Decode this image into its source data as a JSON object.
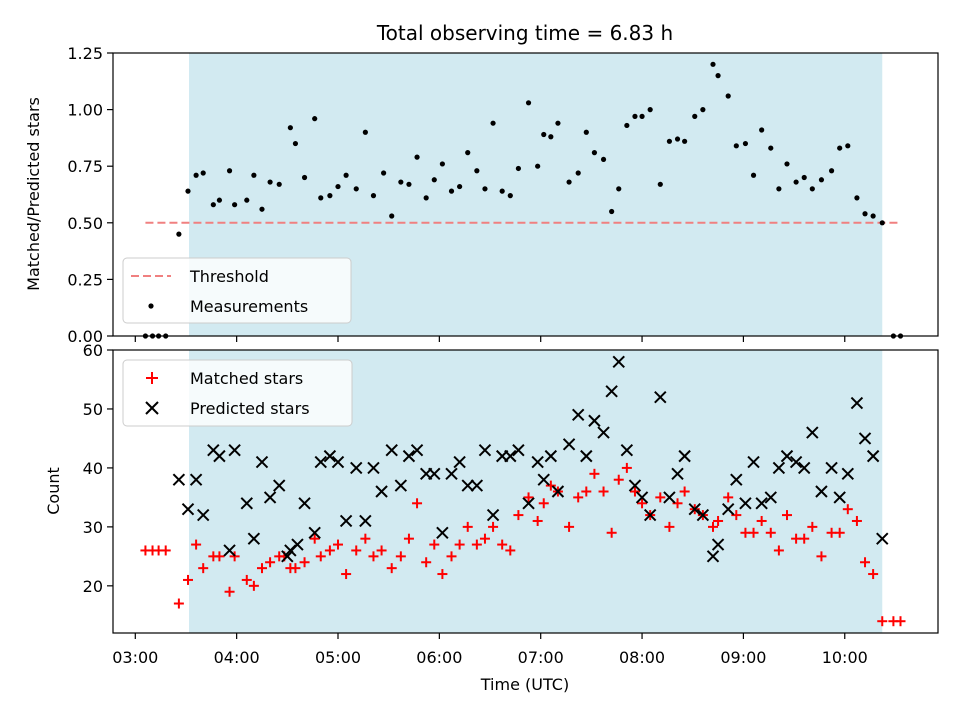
{
  "chart_data": [
    {
      "type": "scatter",
      "title": "Total observing time = 6.83 h",
      "xlabel": "",
      "ylabel": "Matched/Predicted stars",
      "ylim": [
        0,
        1.25
      ],
      "yticks": [
        "0.00",
        "0.25",
        "0.50",
        "0.75",
        "1.00",
        "1.25"
      ],
      "threshold": 0.5,
      "threshold_color": "#f08080",
      "shade_color": "#add8e6",
      "shade_start_hours": 3.53,
      "shade_end_hours": 10.37,
      "legend": {
        "placement": "lower-left",
        "entries": [
          "Threshold",
          "Measurements"
        ]
      },
      "series": [
        {
          "name": "Measurements",
          "color": "#000000",
          "x_hours": [
            3.1,
            3.17,
            3.23,
            3.3,
            3.43,
            3.52,
            3.6,
            3.67,
            3.77,
            3.83,
            3.93,
            3.98,
            4.1,
            4.17,
            4.25,
            4.33,
            4.42,
            4.53,
            4.58,
            4.67,
            4.77,
            4.83,
            4.92,
            5.0,
            5.08,
            5.18,
            5.27,
            5.35,
            5.45,
            5.53,
            5.62,
            5.7,
            5.78,
            5.87,
            5.95,
            6.03,
            6.12,
            6.2,
            6.28,
            6.37,
            6.45,
            6.53,
            6.62,
            6.7,
            6.78,
            6.88,
            6.97,
            7.03,
            7.1,
            7.17,
            7.28,
            7.37,
            7.45,
            7.53,
            7.62,
            7.7,
            7.77,
            7.85,
            7.93,
            8.0,
            8.08,
            8.18,
            8.27,
            8.35,
            8.42,
            8.52,
            8.6,
            8.7,
            8.75,
            8.85,
            8.93,
            9.02,
            9.1,
            9.18,
            9.27,
            9.35,
            9.43,
            9.52,
            9.6,
            9.68,
            9.77,
            9.87,
            9.95,
            10.03,
            10.12,
            10.2,
            10.28,
            10.37,
            10.48,
            10.55
          ],
          "y": [
            0.0,
            0.0,
            0.0,
            0.0,
            0.45,
            0.64,
            0.71,
            0.72,
            0.58,
            0.6,
            0.73,
            0.58,
            0.6,
            0.71,
            0.56,
            0.68,
            0.67,
            0.92,
            0.85,
            0.7,
            0.96,
            0.61,
            0.62,
            0.66,
            0.71,
            0.65,
            0.9,
            0.62,
            0.72,
            0.53,
            0.68,
            0.67,
            0.79,
            0.61,
            0.69,
            0.76,
            0.64,
            0.66,
            0.81,
            0.73,
            0.65,
            0.94,
            0.64,
            0.62,
            0.74,
            1.03,
            0.75,
            0.89,
            0.88,
            0.94,
            0.68,
            0.72,
            0.9,
            0.81,
            0.78,
            0.55,
            0.65,
            0.93,
            0.97,
            0.97,
            1.0,
            0.67,
            0.86,
            0.87,
            0.86,
            0.97,
            1.0,
            1.2,
            1.15,
            1.06,
            0.84,
            0.85,
            0.71,
            0.91,
            0.83,
            0.65,
            0.76,
            0.68,
            0.7,
            0.65,
            0.69,
            0.73,
            0.83,
            0.84,
            0.61,
            0.54,
            0.53,
            0.5,
            0.0,
            0.0
          ]
        }
      ]
    },
    {
      "type": "scatter",
      "title": "",
      "xlabel": "Time (UTC)",
      "ylabel": "Count",
      "ylim": [
        12,
        60
      ],
      "yticks": [
        "20",
        "30",
        "40",
        "50",
        "60"
      ],
      "xlim_hours": [
        2.78,
        10.92
      ],
      "xticks": [
        "03:00",
        "04:00",
        "05:00",
        "06:00",
        "07:00",
        "08:00",
        "09:00",
        "10:00"
      ],
      "xtick_hours": [
        3,
        4,
        5,
        6,
        7,
        8,
        9,
        10
      ],
      "shade_color": "#add8e6",
      "shade_start_hours": 3.53,
      "shade_end_hours": 10.37,
      "legend": {
        "placement": "upper-left",
        "entries": [
          "Matched stars",
          "Predicted stars"
        ]
      },
      "series": [
        {
          "name": "Matched stars",
          "color": "#ff0000",
          "x_hours": [
            3.1,
            3.17,
            3.23,
            3.3,
            3.43,
            3.52,
            3.6,
            3.67,
            3.77,
            3.83,
            3.93,
            3.98,
            4.1,
            4.17,
            4.25,
            4.33,
            4.42,
            4.47,
            4.53,
            4.58,
            4.67,
            4.77,
            4.83,
            4.92,
            5.0,
            5.08,
            5.18,
            5.27,
            5.35,
            5.43,
            5.53,
            5.62,
            5.7,
            5.78,
            5.87,
            5.95,
            6.03,
            6.12,
            6.2,
            6.28,
            6.37,
            6.45,
            6.53,
            6.62,
            6.7,
            6.78,
            6.88,
            6.97,
            7.03,
            7.1,
            7.17,
            7.28,
            7.37,
            7.45,
            7.53,
            7.62,
            7.7,
            7.77,
            7.85,
            7.93,
            8.0,
            8.08,
            8.18,
            8.27,
            8.35,
            8.42,
            8.52,
            8.6,
            8.7,
            8.75,
            8.85,
            8.93,
            9.02,
            9.1,
            9.18,
            9.27,
            9.35,
            9.43,
            9.52,
            9.6,
            9.68,
            9.77,
            9.87,
            9.95,
            10.03,
            10.12,
            10.2,
            10.28,
            10.37,
            10.48,
            10.55
          ],
          "y": [
            26,
            26,
            26,
            26,
            17,
            21,
            27,
            23,
            25,
            25,
            19,
            25,
            21,
            20,
            23,
            24,
            25,
            25,
            23,
            23,
            24,
            28,
            25,
            26,
            27,
            22,
            26,
            28,
            25,
            26,
            23,
            25,
            28,
            34,
            24,
            27,
            22,
            25,
            27,
            30,
            27,
            28,
            30,
            27,
            26,
            32,
            35,
            31,
            34,
            37,
            36,
            30,
            35,
            36,
            39,
            36,
            29,
            38,
            40,
            36,
            34,
            32,
            35,
            30,
            34,
            36,
            33,
            32,
            30,
            31,
            35,
            32,
            29,
            29,
            31,
            29,
            26,
            32,
            28,
            28,
            30,
            25,
            29,
            29,
            33,
            31,
            24,
            22,
            14,
            14,
            14
          ]
        },
        {
          "name": "Predicted stars",
          "color": "#000000",
          "x_hours": [
            3.43,
            3.52,
            3.6,
            3.67,
            3.77,
            3.83,
            3.93,
            3.98,
            4.1,
            4.17,
            4.25,
            4.33,
            4.42,
            4.5,
            4.53,
            4.6,
            4.67,
            4.77,
            4.83,
            4.92,
            5.0,
            5.08,
            5.18,
            5.27,
            5.35,
            5.43,
            5.53,
            5.62,
            5.7,
            5.78,
            5.87,
            5.95,
            6.03,
            6.12,
            6.2,
            6.28,
            6.37,
            6.45,
            6.53,
            6.62,
            6.7,
            6.78,
            6.88,
            6.97,
            7.03,
            7.1,
            7.17,
            7.28,
            7.37,
            7.45,
            7.53,
            7.62,
            7.7,
            7.77,
            7.85,
            7.93,
            8.0,
            8.08,
            8.18,
            8.27,
            8.35,
            8.42,
            8.52,
            8.6,
            8.7,
            8.75,
            8.85,
            8.93,
            9.02,
            9.1,
            9.18,
            9.27,
            9.35,
            9.43,
            9.52,
            9.6,
            9.68,
            9.77,
            9.87,
            9.95,
            10.03,
            10.12,
            10.2,
            10.28,
            10.37
          ],
          "y": [
            38,
            33,
            38,
            32,
            43,
            42,
            26,
            43,
            34,
            28,
            41,
            35,
            37,
            25,
            26,
            27,
            34,
            29,
            41,
            42,
            41,
            31,
            40,
            31,
            40,
            36,
            43,
            37,
            42,
            43,
            39,
            39,
            29,
            39,
            41,
            37,
            37,
            43,
            32,
            42,
            42,
            43,
            34,
            41,
            38,
            42,
            36,
            44,
            49,
            42,
            48,
            46,
            53,
            58,
            43,
            37,
            35,
            32,
            52,
            35,
            39,
            42,
            33,
            32,
            25,
            27,
            33,
            38,
            34,
            41,
            34,
            35,
            40,
            42,
            41,
            40,
            46,
            36,
            40,
            35,
            39,
            51,
            45,
            42,
            28
          ]
        }
      ]
    }
  ]
}
